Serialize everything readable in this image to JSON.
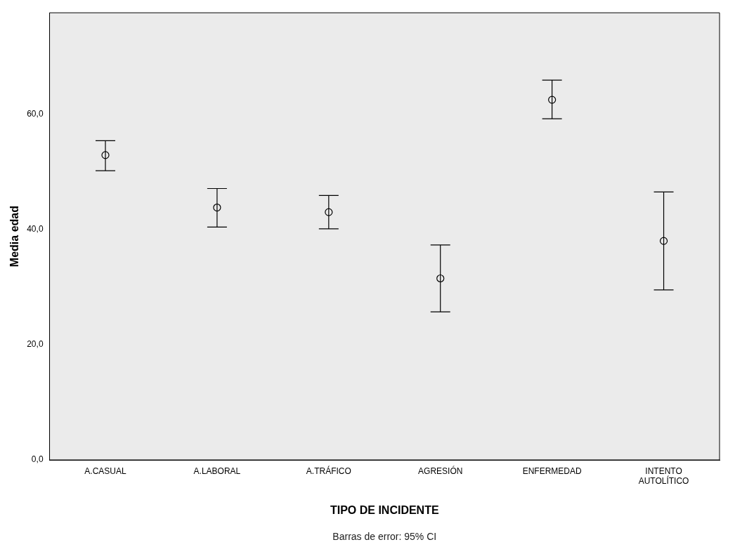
{
  "chart_data": {
    "type": "scatter",
    "xlabel": "TIPO DE INCIDENTE",
    "ylabel": "Media edad",
    "annotations": [
      "Barras de error: 95% CI"
    ],
    "categories": [
      "A.CASUAL",
      "A.LABORAL",
      "A.TRÁFICO",
      "AGRESIÓN",
      "ENFERMEDAD",
      "INTENTO AUTOLÍTICO"
    ],
    "values": [
      52.9,
      43.8,
      43.0,
      31.5,
      62.5,
      38.0
    ],
    "errors": [
      [
        50.2,
        55.4
      ],
      [
        40.4,
        47.1
      ],
      [
        40.1,
        45.9
      ],
      [
        25.7,
        37.3
      ],
      [
        59.2,
        65.9
      ],
      [
        29.5,
        46.5
      ]
    ],
    "color": "#000000",
    "marker": "circle",
    "grid": false,
    "legend": false,
    "ylim": [
      0,
      77.6
    ],
    "yticks": [
      {
        "value": 0,
        "label": "0,0"
      },
      {
        "value": 20,
        "label": "20,0"
      },
      {
        "value": 40,
        "label": "40,0"
      },
      {
        "value": 60,
        "label": "60,0"
      }
    ]
  }
}
